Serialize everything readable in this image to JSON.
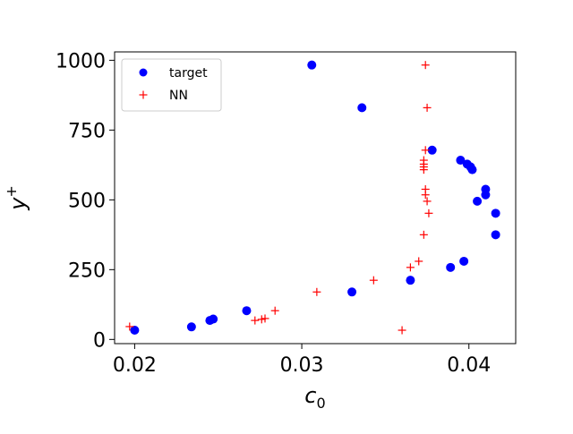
{
  "chart_data": {
    "type": "scatter",
    "xlabel_base": "c",
    "xlabel_sub": "0",
    "ylabel_base": "y",
    "ylabel_sup": "+",
    "xlim": [
      0.0188,
      0.0428
    ],
    "ylim": [
      -15,
      1030
    ],
    "xticks": [
      0.02,
      0.03,
      0.04
    ],
    "xtick_labels": [
      "0.02",
      "0.03",
      "0.04"
    ],
    "yticks": [
      0,
      250,
      500,
      750,
      1000
    ],
    "ytick_labels": [
      "0",
      "250",
      "500",
      "750",
      "1000"
    ],
    "grid": false,
    "legend_position": "top-left",
    "series": [
      {
        "name": "target",
        "marker": "circle",
        "color": "#0000ff",
        "points": [
          {
            "x": 0.02,
            "y": 33
          },
          {
            "x": 0.0234,
            "y": 45
          },
          {
            "x": 0.0245,
            "y": 68
          },
          {
            "x": 0.0247,
            "y": 73
          },
          {
            "x": 0.0267,
            "y": 103
          },
          {
            "x": 0.0306,
            "y": 983
          },
          {
            "x": 0.033,
            "y": 170
          },
          {
            "x": 0.0336,
            "y": 830
          },
          {
            "x": 0.0365,
            "y": 212
          },
          {
            "x": 0.0378,
            "y": 678
          },
          {
            "x": 0.0389,
            "y": 258
          },
          {
            "x": 0.0395,
            "y": 642
          },
          {
            "x": 0.0397,
            "y": 280
          },
          {
            "x": 0.0399,
            "y": 628
          },
          {
            "x": 0.0401,
            "y": 618
          },
          {
            "x": 0.0402,
            "y": 608
          },
          {
            "x": 0.0405,
            "y": 495
          },
          {
            "x": 0.041,
            "y": 538
          },
          {
            "x": 0.041,
            "y": 518
          },
          {
            "x": 0.0416,
            "y": 452
          },
          {
            "x": 0.0416,
            "y": 375
          }
        ]
      },
      {
        "name": "NN",
        "marker": "plus",
        "color": "#ff0000",
        "points": [
          {
            "x": 0.0197,
            "y": 46
          },
          {
            "x": 0.0272,
            "y": 68
          },
          {
            "x": 0.0276,
            "y": 72
          },
          {
            "x": 0.0278,
            "y": 75
          },
          {
            "x": 0.0284,
            "y": 103
          },
          {
            "x": 0.0309,
            "y": 170
          },
          {
            "x": 0.0343,
            "y": 212
          },
          {
            "x": 0.036,
            "y": 33
          },
          {
            "x": 0.0365,
            "y": 258
          },
          {
            "x": 0.037,
            "y": 280
          },
          {
            "x": 0.0373,
            "y": 375
          },
          {
            "x": 0.0374,
            "y": 983
          },
          {
            "x": 0.0375,
            "y": 830
          },
          {
            "x": 0.0374,
            "y": 678
          },
          {
            "x": 0.0373,
            "y": 642
          },
          {
            "x": 0.0373,
            "y": 628
          },
          {
            "x": 0.0373,
            "y": 618
          },
          {
            "x": 0.0373,
            "y": 608
          },
          {
            "x": 0.0374,
            "y": 538
          },
          {
            "x": 0.0374,
            "y": 518
          },
          {
            "x": 0.0375,
            "y": 495
          },
          {
            "x": 0.0376,
            "y": 452
          }
        ]
      }
    ]
  }
}
